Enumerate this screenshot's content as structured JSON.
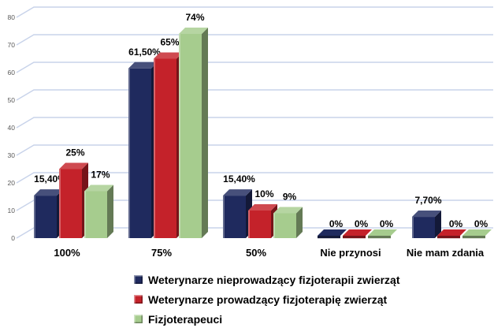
{
  "chart_data": {
    "type": "bar",
    "style": "3d-clustered-column",
    "title": "",
    "xlabel": "",
    "ylabel": "",
    "categories": [
      "100%",
      "75%",
      "50%",
      "Nie przynosi",
      "Nie mam zdania"
    ],
    "series": [
      {
        "name": "Weterynarze nieprowadzący fizjoterapii zwierząt",
        "color": "#1F2A5E",
        "values": [
          15.4,
          61.5,
          15.4,
          0,
          7.7
        ],
        "value_labels": [
          "15,40%",
          "61,50%",
          "15,40%",
          "0%",
          "7,70%"
        ]
      },
      {
        "name": "Weterynarze prowadzący fizjoterapię zwierząt",
        "color": "#C4222A",
        "values": [
          25,
          65,
          10,
          0,
          0
        ],
        "value_labels": [
          "25%",
          "65%",
          "10%",
          "0%",
          "0%"
        ]
      },
      {
        "name": "Fizjoterapeuci",
        "color": "#A6CC8E",
        "values": [
          17,
          74,
          9,
          0,
          0
        ],
        "value_labels": [
          "17%",
          "74%",
          "9%",
          "0%",
          "0%"
        ]
      }
    ],
    "y_axis": {
      "min": 0,
      "max": 80,
      "step": 10,
      "tick_labels": [
        "0",
        "10",
        "20",
        "30",
        "40",
        "50",
        "60",
        "70",
        "80"
      ]
    },
    "grid": true,
    "legend_position": "bottom-left",
    "colors": {
      "background": "#FFFFFF",
      "gridline": "#C8D3EA",
      "axis_labels": "#595959",
      "data_labels": "#000000"
    }
  }
}
